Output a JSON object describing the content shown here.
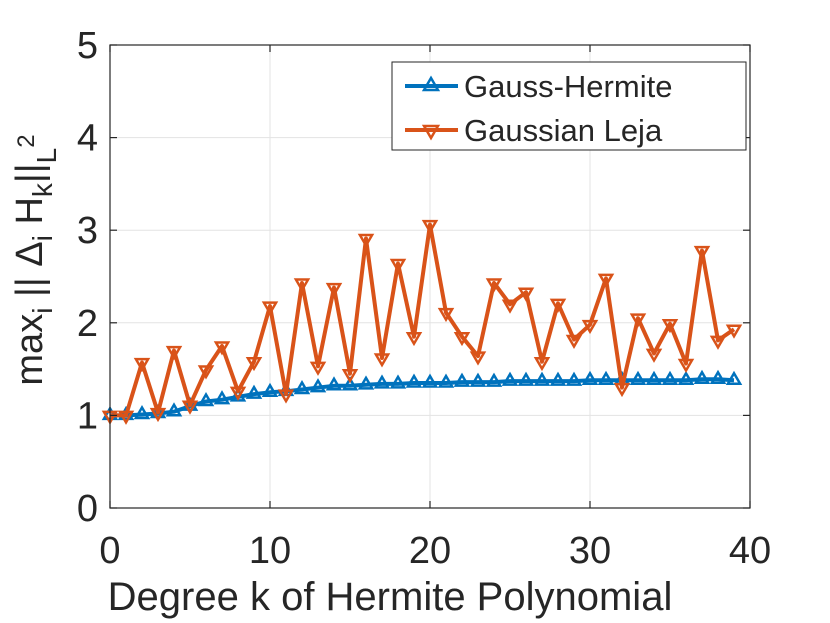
{
  "chart_data": {
    "type": "line",
    "xlabel": "Degree k of Hermite Polynomial",
    "ylabel": "max_i || Δ_i H_k ||_L²",
    "xlim": [
      0,
      40
    ],
    "ylim": [
      0,
      5
    ],
    "xticks": [
      0,
      10,
      20,
      30,
      40
    ],
    "yticks": [
      0,
      1,
      2,
      3,
      4,
      5
    ],
    "grid": true,
    "legend_position": "top-right",
    "x": [
      0,
      1,
      2,
      3,
      4,
      5,
      6,
      7,
      8,
      9,
      10,
      11,
      12,
      13,
      14,
      15,
      16,
      17,
      18,
      19,
      20,
      21,
      22,
      23,
      24,
      25,
      26,
      27,
      28,
      29,
      30,
      31,
      32,
      33,
      34,
      35,
      36,
      37,
      38,
      39
    ],
    "series": [
      {
        "name": "Gauss-Hermite",
        "color": "#0072BD",
        "marker": "triangle-up",
        "values": [
          1.0,
          1.0,
          1.01,
          1.02,
          1.04,
          1.1,
          1.15,
          1.17,
          1.2,
          1.23,
          1.25,
          1.26,
          1.28,
          1.3,
          1.32,
          1.32,
          1.33,
          1.34,
          1.34,
          1.35,
          1.35,
          1.35,
          1.36,
          1.36,
          1.36,
          1.37,
          1.37,
          1.37,
          1.37,
          1.37,
          1.38,
          1.38,
          1.38,
          1.38,
          1.38,
          1.38,
          1.38,
          1.39,
          1.39,
          1.38
        ]
      },
      {
        "name": "Gaussian Leja",
        "color": "#D95319",
        "marker": "triangle-down",
        "values": [
          1.0,
          1.0,
          1.57,
          1.03,
          1.7,
          1.11,
          1.49,
          1.75,
          1.26,
          1.58,
          2.18,
          1.23,
          2.43,
          1.53,
          2.38,
          1.45,
          2.91,
          1.62,
          2.64,
          1.85,
          3.06,
          2.11,
          1.85,
          1.64,
          2.43,
          2.2,
          2.33,
          1.58,
          2.21,
          1.82,
          1.98,
          2.48,
          1.3,
          2.05,
          1.67,
          1.99,
          1.56,
          2.78,
          1.81,
          1.93
        ]
      }
    ]
  }
}
